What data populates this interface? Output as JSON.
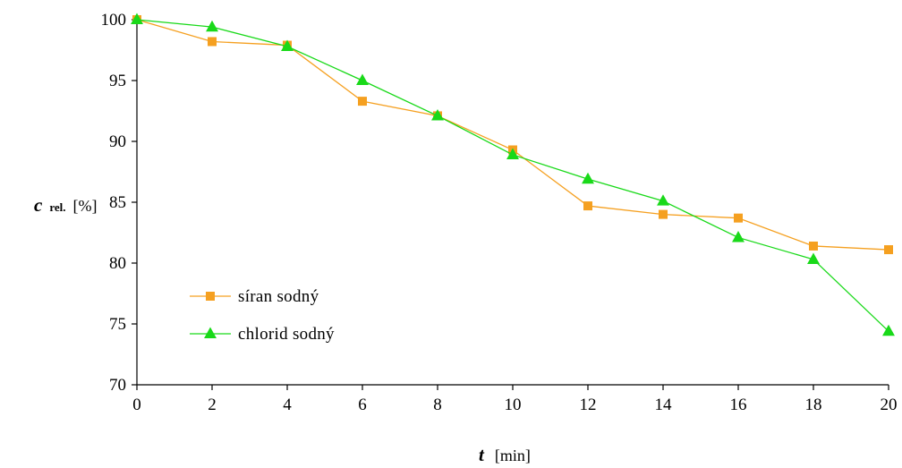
{
  "chart_data": {
    "type": "line",
    "x": [
      0,
      2,
      4,
      6,
      8,
      10,
      12,
      14,
      16,
      18,
      20
    ],
    "xticks": [
      "0",
      "2",
      "4",
      "6",
      "8",
      "10",
      "12",
      "14",
      "16",
      "18",
      "20"
    ],
    "yticks": [
      "70",
      "75",
      "80",
      "85",
      "90",
      "95",
      "100"
    ],
    "xlim": [
      0,
      20
    ],
    "ylim": [
      70,
      100
    ],
    "grid": false,
    "legend_position": "lower-left",
    "xlabel": {
      "symbol": "t",
      "unit": "[min]"
    },
    "ylabel": {
      "symbol": "c",
      "subscript": "rel.",
      "unit": "[%]"
    },
    "series": [
      {
        "name": "síran sodný",
        "values": [
          100.0,
          98.2,
          97.9,
          93.3,
          92.1,
          89.3,
          84.7,
          84.0,
          83.7,
          81.4,
          81.1
        ],
        "color": "#f5a020",
        "marker": "square"
      },
      {
        "name": "chlorid sodný",
        "values": [
          100.0,
          99.4,
          97.8,
          95.0,
          92.1,
          88.9,
          86.9,
          85.1,
          82.1,
          80.3,
          74.4
        ],
        "color": "#19d919",
        "marker": "triangle"
      }
    ]
  }
}
